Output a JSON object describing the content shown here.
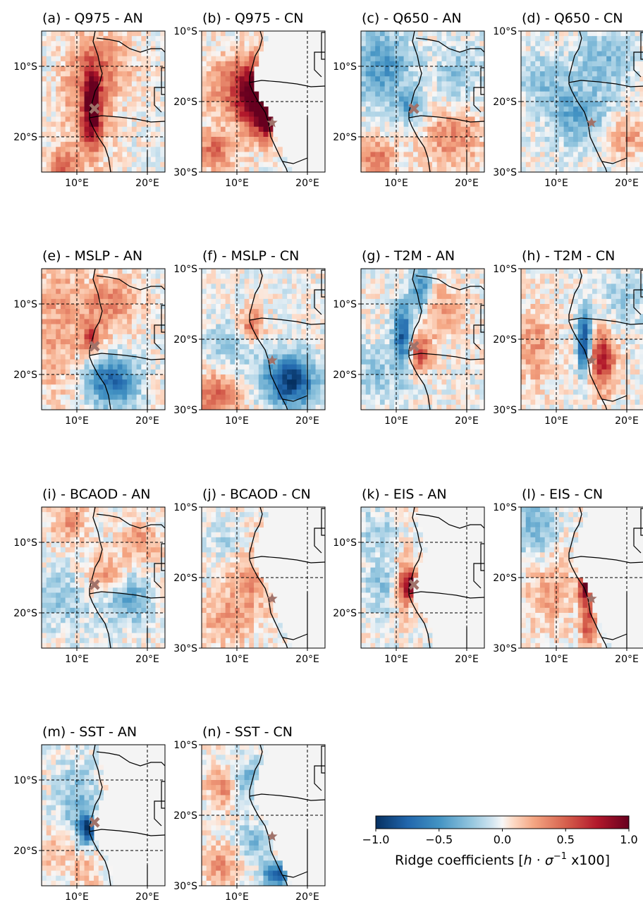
{
  "chart_data": {
    "type": "heatmap",
    "description_units": "Ridge coefficients [h·σ⁻¹ x100]",
    "colormap": "RdBu_r",
    "colors": {
      "negative": "#053061",
      "zero": "#f7f7f7",
      "positive": "#67001f",
      "land_mask": "#f4f4f4",
      "marker": "#a0726a"
    },
    "colorbar": {
      "range": [
        -1.0,
        1.0
      ],
      "ticks": [
        "−1.0",
        "−0.5",
        "0.0",
        "0.5",
        "1.0"
      ],
      "tick_values": [
        -1.0,
        -0.5,
        0.0,
        0.5,
        1.0
      ],
      "label_main": "Ridge coefficients [",
      "label_h": "h",
      "label_dot": " · ",
      "label_sigma": "σ",
      "label_sup": "−1",
      "label_end": " x100]"
    },
    "domains": {
      "AN": {
        "lon": [
          5,
          22.5
        ],
        "lat": [
          -5,
          -25
        ],
        "lat_ticks": [
          "10°S",
          "20°S"
        ],
        "lat_tick_values": [
          -10,
          -20
        ],
        "lon_ticks": [
          "10°E",
          "20°E"
        ],
        "lon_tick_values": [
          10,
          20
        ],
        "marker": "x",
        "site_lon": 12.5,
        "site_lat": -16
      },
      "CN": {
        "lon": [
          5,
          22.5
        ],
        "lat": [
          -10,
          -30
        ],
        "lat_ticks": [
          "10°S",
          "20°S",
          "30°S"
        ],
        "lat_tick_values": [
          -10,
          -20,
          -30
        ],
        "lon_ticks": [
          "10°E",
          "20°E"
        ],
        "lon_tick_values": [
          10,
          20
        ],
        "marker": "star",
        "site_lon": 15,
        "site_lat": -23
      }
    },
    "panels": [
      {
        "title": "(a) - Q975 - AN",
        "domain": "AN",
        "land_masked": false,
        "features": [
          {
            "lon": 12.2,
            "lat": -16,
            "sx": 0.8,
            "sy": 3.5,
            "amp": 1.0
          },
          {
            "lon": 11.5,
            "lat": -15,
            "sx": 2.5,
            "sy": 6,
            "amp": 0.35
          },
          {
            "lon": 8,
            "lat": -24,
            "sx": 1.5,
            "sy": 1.5,
            "amp": 0.45
          },
          {
            "lon": 14,
            "lat": -10,
            "sx": 3,
            "sy": 3,
            "amp": 0.25
          }
        ]
      },
      {
        "title": "(b) - Q975 - CN",
        "domain": "CN",
        "land_masked": true,
        "features": [
          {
            "lon": 12.5,
            "lat": -19.5,
            "sx": 1.6,
            "sy": 3.5,
            "amp": 0.95
          },
          {
            "lon": 14.3,
            "lat": -22.5,
            "sx": 0.9,
            "sy": 1.8,
            "amp": 0.9
          },
          {
            "lon": 10,
            "lat": -18,
            "sx": 3,
            "sy": 3,
            "amp": 0.45
          },
          {
            "lon": 7,
            "lat": -27,
            "sx": 1.8,
            "sy": 2,
            "amp": 0.45
          }
        ]
      },
      {
        "title": "(c) - Q650 - AN",
        "domain": "AN",
        "land_masked": false,
        "features": [
          {
            "lon": 8,
            "lat": -10,
            "sx": 3,
            "sy": 4,
            "amp": -0.45
          },
          {
            "lon": 12,
            "lat": -16,
            "sx": 1.5,
            "sy": 1.5,
            "amp": -0.4
          },
          {
            "lon": 18,
            "lat": -20,
            "sx": 3,
            "sy": 3,
            "amp": 0.35
          },
          {
            "lon": 7,
            "lat": -23,
            "sx": 2,
            "sy": 2,
            "amp": 0.4
          },
          {
            "lon": 19,
            "lat": -11,
            "sx": 2.5,
            "sy": 3,
            "amp": -0.25
          }
        ]
      },
      {
        "title": "(d) - Q650 - CN",
        "domain": "CN",
        "land_masked": false,
        "features": [
          {
            "lon": 13,
            "lat": -22,
            "sx": 3,
            "sy": 3,
            "amp": -0.4
          },
          {
            "lon": 17,
            "lat": -14,
            "sx": 3,
            "sy": 3,
            "amp": -0.3
          },
          {
            "lon": 20,
            "lat": -25,
            "sx": 2,
            "sy": 2,
            "amp": 0.3
          },
          {
            "lon": 8,
            "lat": -17,
            "sx": 2.5,
            "sy": 2.5,
            "amp": -0.25
          }
        ]
      },
      {
        "title": "(e) - MSLP - AN",
        "domain": "AN",
        "land_masked": false,
        "features": [
          {
            "lon": 15,
            "lat": -21,
            "sx": 2.5,
            "sy": 2.5,
            "amp": -0.7
          },
          {
            "lon": 14.5,
            "lat": -10,
            "sx": 3,
            "sy": 3,
            "amp": 0.35
          },
          {
            "lon": 12,
            "lat": -15,
            "sx": 1,
            "sy": 1.5,
            "amp": 0.55
          },
          {
            "lon": 7,
            "lat": -13,
            "sx": 2.5,
            "sy": 8,
            "amp": 0.25
          }
        ]
      },
      {
        "title": "(f) - MSLP - CN",
        "domain": "CN",
        "land_masked": false,
        "features": [
          {
            "lon": 17.5,
            "lat": -26,
            "sx": 2.5,
            "sy": 2.5,
            "amp": -0.95
          },
          {
            "lon": 12,
            "lat": -18,
            "sx": 1.2,
            "sy": 1.5,
            "amp": 0.5
          },
          {
            "lon": 7,
            "lat": -28,
            "sx": 2.5,
            "sy": 2.5,
            "amp": 0.45
          },
          {
            "lon": 9,
            "lat": -21,
            "sx": 2.5,
            "sy": 2.5,
            "amp": -0.25
          }
        ]
      },
      {
        "title": "(g) - T2M - AN",
        "domain": "AN",
        "land_masked": false,
        "features": [
          {
            "lon": 11,
            "lat": -15,
            "sx": 1.0,
            "sy": 3.5,
            "amp": -0.85
          },
          {
            "lon": 13.5,
            "lat": -8,
            "sx": 1.0,
            "sy": 2.5,
            "amp": -0.6
          },
          {
            "lon": 13,
            "lat": -17,
            "sx": 1.3,
            "sy": 2,
            "amp": 0.6
          },
          {
            "lon": 16,
            "lat": -11,
            "sx": 2.5,
            "sy": 2.5,
            "amp": 0.3
          },
          {
            "lon": 7,
            "lat": -20,
            "sx": 2,
            "sy": 3,
            "amp": -0.25
          }
        ]
      },
      {
        "title": "(h) - T2M - CN",
        "domain": "CN",
        "land_masked": false,
        "features": [
          {
            "lon": 14,
            "lat": -20.5,
            "sx": 0.7,
            "sy": 3,
            "amp": -0.95
          },
          {
            "lon": 16.5,
            "lat": -23,
            "sx": 1.3,
            "sy": 3,
            "amp": 0.75
          },
          {
            "lon": 7,
            "lat": -21,
            "sx": 2,
            "sy": 4,
            "amp": 0.3
          },
          {
            "lon": 20,
            "lat": -14,
            "sx": 2.5,
            "sy": 3,
            "amp": -0.2
          }
        ]
      },
      {
        "title": "(i) - BCAOD - AN",
        "domain": "AN",
        "land_masked": false,
        "features": [
          {
            "lon": 17,
            "lat": -18,
            "sx": 2.5,
            "sy": 2.5,
            "amp": -0.4
          },
          {
            "lon": 8,
            "lat": -18,
            "sx": 2.5,
            "sy": 3,
            "amp": -0.25
          },
          {
            "lon": 14,
            "lat": -15,
            "sx": 2,
            "sy": 2,
            "amp": 0.35
          },
          {
            "lon": 19,
            "lat": -10,
            "sx": 2,
            "sy": 2,
            "amp": 0.3
          },
          {
            "lon": 9,
            "lat": -7,
            "sx": 2,
            "sy": 2,
            "amp": 0.3
          }
        ]
      },
      {
        "title": "(j) - BCAOD - CN",
        "domain": "CN",
        "land_masked": true,
        "features": [
          {
            "lon": 12,
            "lat": -20,
            "sx": 2.5,
            "sy": 4,
            "amp": 0.3
          },
          {
            "lon": 8,
            "lat": -26,
            "sx": 2.5,
            "sy": 2.5,
            "amp": 0.25
          },
          {
            "lon": 9,
            "lat": -15,
            "sx": 2,
            "sy": 2,
            "amp": -0.2
          }
        ]
      },
      {
        "title": "(k) - EIS - AN",
        "domain": "AN",
        "land_masked": true,
        "features": [
          {
            "lon": 12.2,
            "lat": -16,
            "sx": 0.8,
            "sy": 1.5,
            "amp": 0.85
          },
          {
            "lon": 11,
            "lat": -16,
            "sx": 1,
            "sy": 3,
            "amp": 0.4
          },
          {
            "lon": 8,
            "lat": -16,
            "sx": 2,
            "sy": 3,
            "amp": -0.25
          },
          {
            "lon": 7,
            "lat": -8,
            "sx": 2,
            "sy": 2,
            "amp": -0.2
          }
        ]
      },
      {
        "title": "(l) - EIS - CN",
        "domain": "CN",
        "land_masked": true,
        "features": [
          {
            "lon": 14,
            "lat": -21,
            "sx": 0.6,
            "sy": 1.5,
            "amp": 0.9
          },
          {
            "lon": 14.5,
            "lat": -26,
            "sx": 0.8,
            "sy": 3,
            "amp": 0.55
          },
          {
            "lon": 7,
            "lat": -13,
            "sx": 2,
            "sy": 3,
            "amp": -0.35
          },
          {
            "lon": 9,
            "lat": -22,
            "sx": 2.5,
            "sy": 4,
            "amp": 0.25
          }
        ]
      },
      {
        "title": "(m) - SST - AN",
        "domain": "AN",
        "land_masked": true,
        "features": [
          {
            "lon": 11.5,
            "lat": -17,
            "sx": 0.8,
            "sy": 1.5,
            "amp": -0.85
          },
          {
            "lon": 10,
            "lat": -13,
            "sx": 2,
            "sy": 4,
            "amp": -0.3
          },
          {
            "lon": 7,
            "lat": -20,
            "sx": 2,
            "sy": 2,
            "amp": 0.2
          },
          {
            "lon": 11,
            "lat": -23,
            "sx": 1.5,
            "sy": 2,
            "amp": 0.2
          }
        ]
      },
      {
        "title": "(n) - SST - CN",
        "domain": "CN",
        "land_masked": true,
        "features": [
          {
            "lon": 15.5,
            "lat": -28.5,
            "sx": 1.2,
            "sy": 1.2,
            "amp": -0.85
          },
          {
            "lon": 11.5,
            "lat": -15,
            "sx": 1.5,
            "sy": 2,
            "amp": -0.35
          },
          {
            "lon": 12,
            "lat": -24,
            "sx": 1.5,
            "sy": 2,
            "amp": -0.3
          },
          {
            "lon": 8,
            "lat": -16,
            "sx": 1.5,
            "sy": 2,
            "amp": 0.35
          },
          {
            "lon": 8,
            "lat": -27,
            "sx": 2,
            "sy": 2,
            "amp": 0.3
          }
        ]
      }
    ]
  }
}
